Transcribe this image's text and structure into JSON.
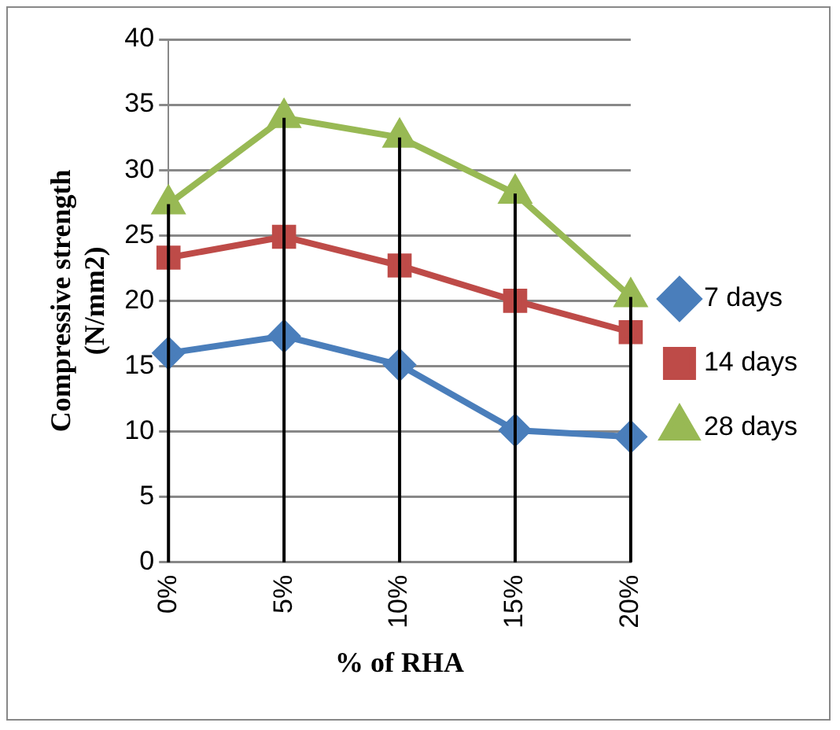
{
  "chart_data": {
    "type": "line",
    "xlabel": "% of RHA",
    "ylabel": "Compressive strength (N/mm2)",
    "categories": [
      "0%",
      "5%",
      "10%",
      "15%",
      "20%"
    ],
    "series": [
      {
        "name": "7 days",
        "color": "#4a7ebb",
        "marker": "diamond",
        "values": [
          16,
          17.3,
          15.1,
          10.1,
          9.6
        ]
      },
      {
        "name": "14 days",
        "color": "#be4b48",
        "marker": "square",
        "values": [
          23.3,
          24.9,
          22.7,
          20,
          17.6
        ]
      },
      {
        "name": "28 days",
        "color": "#98b954",
        "marker": "triangle",
        "values": [
          27.4,
          34,
          32.5,
          28.2,
          20.3
        ]
      }
    ],
    "ylim": [
      0,
      40
    ],
    "yticks": [
      0,
      5,
      10,
      15,
      20,
      25,
      30,
      35,
      40
    ],
    "grid": true,
    "legend": "right"
  }
}
